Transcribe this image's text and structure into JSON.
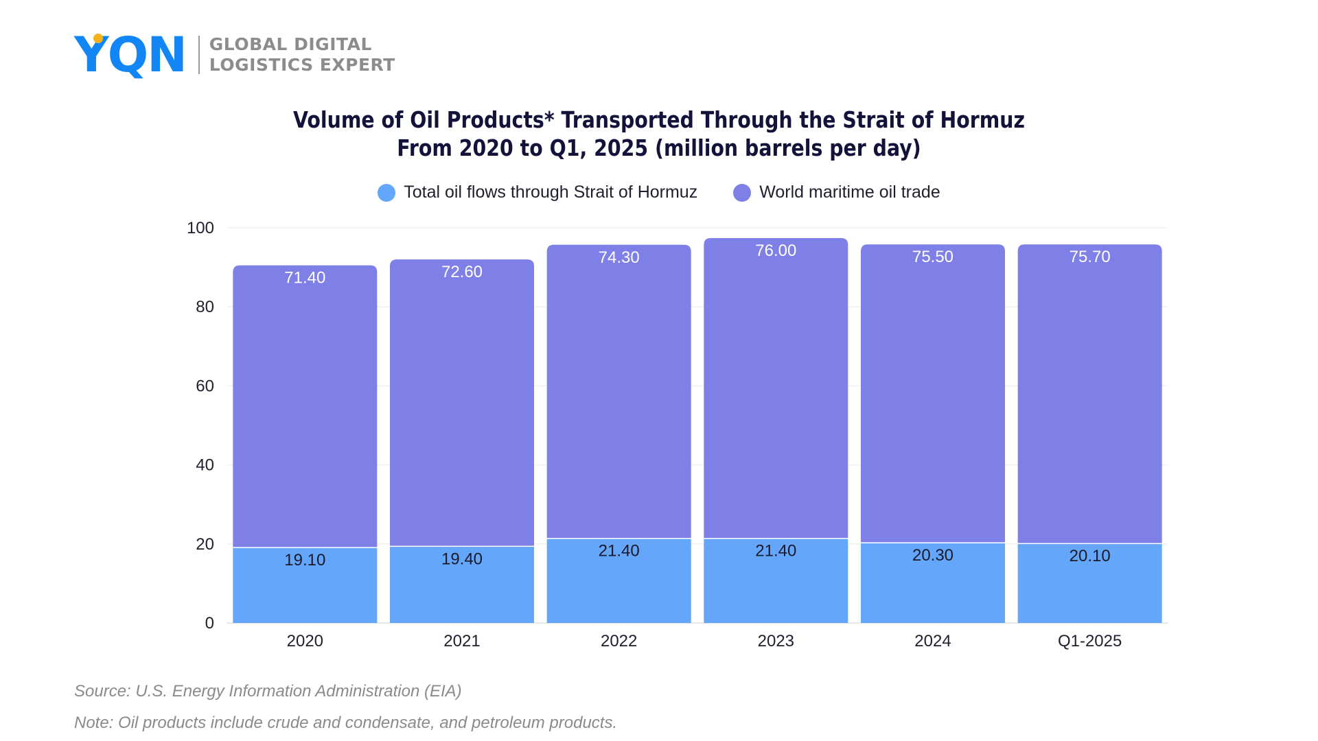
{
  "brand": {
    "logo_text": "YQN",
    "tagline_line1": "GLOBAL DIGITAL",
    "tagline_line2": "LOGISTICS EXPERT"
  },
  "colors": {
    "logo_blue": "#1186f4",
    "logo_dot": "#f7b21b",
    "hormuz": "#64a6fa",
    "world": "#7f7fe8"
  },
  "footer": {
    "source": "Source:  U.S. Energy Information Administration (EIA)",
    "note": "Note: Oil products include crude and condensate, and petroleum products."
  },
  "chart_data": {
    "type": "bar",
    "stacked": true,
    "title_line1": "Volume of Oil Products* Transported Through the Strait of Hormuz",
    "title_line2": "From 2020 to Q1, 2025 (million barrels per day)",
    "xlabel": "",
    "ylabel": "",
    "ylim": [
      0,
      100
    ],
    "yticks": [
      "0",
      "20",
      "40",
      "60",
      "80",
      "100"
    ],
    "grid": true,
    "legend_position": "top",
    "categories": [
      "2020",
      "2021",
      "2022",
      "2023",
      "2024",
      "Q1-2025"
    ],
    "series": [
      {
        "name": "Total oil flows through Strait of Hormuz",
        "color": "#64a6fa",
        "values": [
          19.1,
          19.4,
          21.4,
          21.4,
          20.3,
          20.1
        ],
        "labels": [
          "19.10",
          "19.40",
          "21.40",
          "21.40",
          "20.30",
          "20.10"
        ]
      },
      {
        "name": "World maritime oil trade",
        "color": "#7f7fe8",
        "values": [
          71.4,
          72.6,
          74.3,
          76.0,
          75.5,
          75.7
        ],
        "labels": [
          "71.40",
          "72.60",
          "74.30",
          "76.00",
          "75.50",
          "75.70"
        ]
      }
    ]
  }
}
